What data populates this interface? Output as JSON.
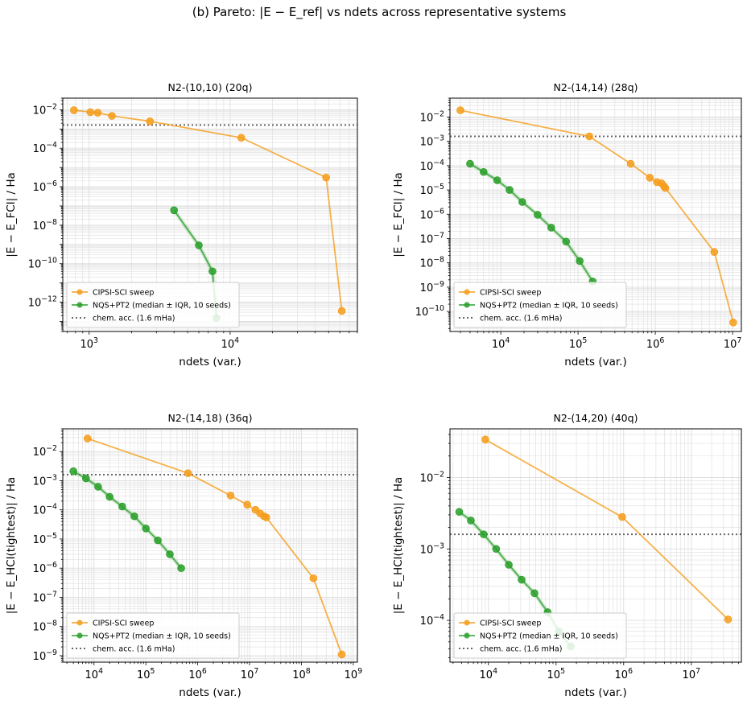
{
  "suptitle": "(b) Pareto: |E − E_ref| vs ndets across representative systems",
  "legend_entries": {
    "cipsi": "CIPSI-SCI sweep",
    "nqs": "NQS+PT2 (median ± IQR, 10 seeds)",
    "chem": "chem. acc. (1.6 mHa)"
  },
  "colors": {
    "cipsi": "#f59d1c",
    "nqs": "#2ca02c",
    "chem": "#666666",
    "grid": "#dddddd"
  },
  "chart_data": [
    {
      "type": "line",
      "title": "N2-(10,10)  (20q)",
      "xlabel": "ndets (var.)",
      "ylabel": "|E − E_FCI| / Ha",
      "xscale": "log",
      "yscale": "log",
      "xlim": [
        650,
        80000
      ],
      "ylim": [
        3e-14,
        0.04
      ],
      "xticks": [
        1000,
        10000
      ],
      "xtick_labels": [
        "10^3",
        "10^4"
      ],
      "yticks": [
        1e-12,
        1e-10,
        1e-08,
        1e-06,
        0.0001,
        0.01
      ],
      "ytick_labels": [
        "10^-12",
        "10^-10",
        "10^-8",
        "10^-6",
        "10^-4",
        "10^-2"
      ],
      "chem_acc": 0.0016,
      "legend_loc": "lower left",
      "grid": true,
      "series": [
        {
          "key": "cipsi",
          "x": [
            780,
            1020,
            1150,
            1450,
            2700,
            12000,
            48000,
            62000
          ],
          "y": [
            0.0095,
            0.0075,
            0.007,
            0.0048,
            0.0025,
            0.00035,
            3e-06,
            3.5e-13
          ]
        },
        {
          "key": "nqs",
          "x": [
            4000,
            6000,
            7500,
            8000
          ],
          "y": [
            6e-08,
            9e-10,
            4e-11,
            1.5e-13
          ]
        }
      ]
    },
    {
      "type": "line",
      "title": "N2-(14,14)  (28q)",
      "xlabel": "ndets (var.)",
      "ylabel": "|E − E_FCI| / Ha",
      "xscale": "log",
      "yscale": "log",
      "xlim": [
        2200,
        13000000
      ],
      "ylim": [
        1.5e-11,
        0.06
      ],
      "xticks": [
        10000,
        100000,
        1000000,
        10000000
      ],
      "xtick_labels": [
        "10^4",
        "10^5",
        "10^6",
        "10^7"
      ],
      "yticks": [
        1e-10,
        1e-09,
        1e-08,
        1e-07,
        1e-06,
        1e-05,
        0.0001,
        0.001,
        0.01
      ],
      "ytick_labels": [
        "10^-10",
        "10^-9",
        "10^-8",
        "10^-7",
        "10^-6",
        "10^-5",
        "10^-4",
        "10^-3",
        "10^-2"
      ],
      "chem_acc": 0.0016,
      "legend_loc": "lower left",
      "grid": true,
      "series": [
        {
          "key": "cipsi",
          "x": [
            3000,
            140000,
            480000,
            850000,
            1050000,
            1200000,
            1300000,
            1350000,
            5800000,
            10200000
          ],
          "y": [
            0.019,
            0.0016,
            0.00012,
            3.2e-05,
            2.1e-05,
            1.9e-05,
            1.4e-05,
            1.2e-05,
            2.8e-08,
            3.5e-11
          ]
        },
        {
          "key": "nqs",
          "x": [
            4000,
            6000,
            9000,
            13000,
            19000,
            30000,
            45000,
            70000,
            105000,
            155000
          ],
          "y": [
            0.00012,
            5.5e-05,
            2.5e-05,
            1e-05,
            3.2e-06,
            9.5e-07,
            2.8e-07,
            7.5e-08,
            1.2e-08,
            1.7e-09
          ]
        }
      ]
    },
    {
      "type": "line",
      "title": "N2-(14,18)  (36q)",
      "xlabel": "ndets (var.)",
      "ylabel": "|E − E_HCI(tightest)| / Ha",
      "xscale": "log",
      "yscale": "log",
      "xlim": [
        2500,
        1200000000
      ],
      "ylim": [
        6e-10,
        0.06
      ],
      "xticks": [
        10000,
        100000,
        1000000,
        10000000,
        100000000,
        1000000000
      ],
      "xtick_labels": [
        "10^4",
        "10^5",
        "10^6",
        "10^7",
        "10^8",
        "10^9"
      ],
      "yticks": [
        1e-09,
        1e-08,
        1e-07,
        1e-06,
        1e-05,
        0.0001,
        0.001,
        0.01
      ],
      "ytick_labels": [
        "10^-9",
        "10^-8",
        "10^-7",
        "10^-6",
        "10^-5",
        "10^-4",
        "10^-3",
        "10^-2"
      ],
      "chem_acc": 0.0016,
      "legend_loc": "lower left",
      "grid": true,
      "series": [
        {
          "key": "cipsi",
          "x": [
            7500,
            650000,
            4300000,
            9000000,
            13000000,
            16000000,
            19000000,
            21000000,
            170000000,
            600000000
          ],
          "y": [
            0.028,
            0.0018,
            0.00031,
            0.00015,
            0.0001,
            7.5e-05,
            6e-05,
            5.5e-05,
            4.5e-07,
            1.1e-09
          ]
        },
        {
          "key": "nqs",
          "x": [
            4000,
            7000,
            12000,
            20000,
            35000,
            60000,
            100000,
            170000,
            290000,
            480000
          ],
          "y": [
            0.0021,
            0.0012,
            0.00062,
            0.00028,
            0.00013,
            6e-05,
            2.3e-05,
            9e-06,
            3e-06,
            1e-06
          ]
        }
      ]
    },
    {
      "type": "line",
      "title": "N2-(14,20)  (40q)",
      "xlabel": "ndets (var.)",
      "ylabel": "|E − E_HCI(tightest)| / Ha",
      "xscale": "log",
      "yscale": "log",
      "xlim": [
        2700,
        55000000
      ],
      "ylim": [
        2.6e-05,
        0.048
      ],
      "xticks": [
        10000,
        100000,
        1000000,
        10000000
      ],
      "xtick_labels": [
        "10^4",
        "10^5",
        "10^6",
        "10^7"
      ],
      "yticks": [
        0.0001,
        0.001,
        0.01
      ],
      "ytick_labels": [
        "10^-4",
        "10^-3",
        "10^-2"
      ],
      "chem_acc": 0.0016,
      "legend_loc": "lower left",
      "grid": true,
      "series": [
        {
          "key": "cipsi",
          "x": [
            9000,
            950000,
            35000000
          ],
          "y": [
            0.034,
            0.0028,
            0.000103
          ]
        },
        {
          "key": "nqs",
          "x": [
            3700,
            5500,
            8500,
            13000,
            20000,
            31000,
            48000,
            75000,
            110000,
            165000
          ],
          "y": [
            0.0033,
            0.0025,
            0.0016,
            0.001,
            0.0006,
            0.00037,
            0.00024,
            0.00013,
            7e-05,
            4.3e-05
          ]
        }
      ]
    }
  ]
}
